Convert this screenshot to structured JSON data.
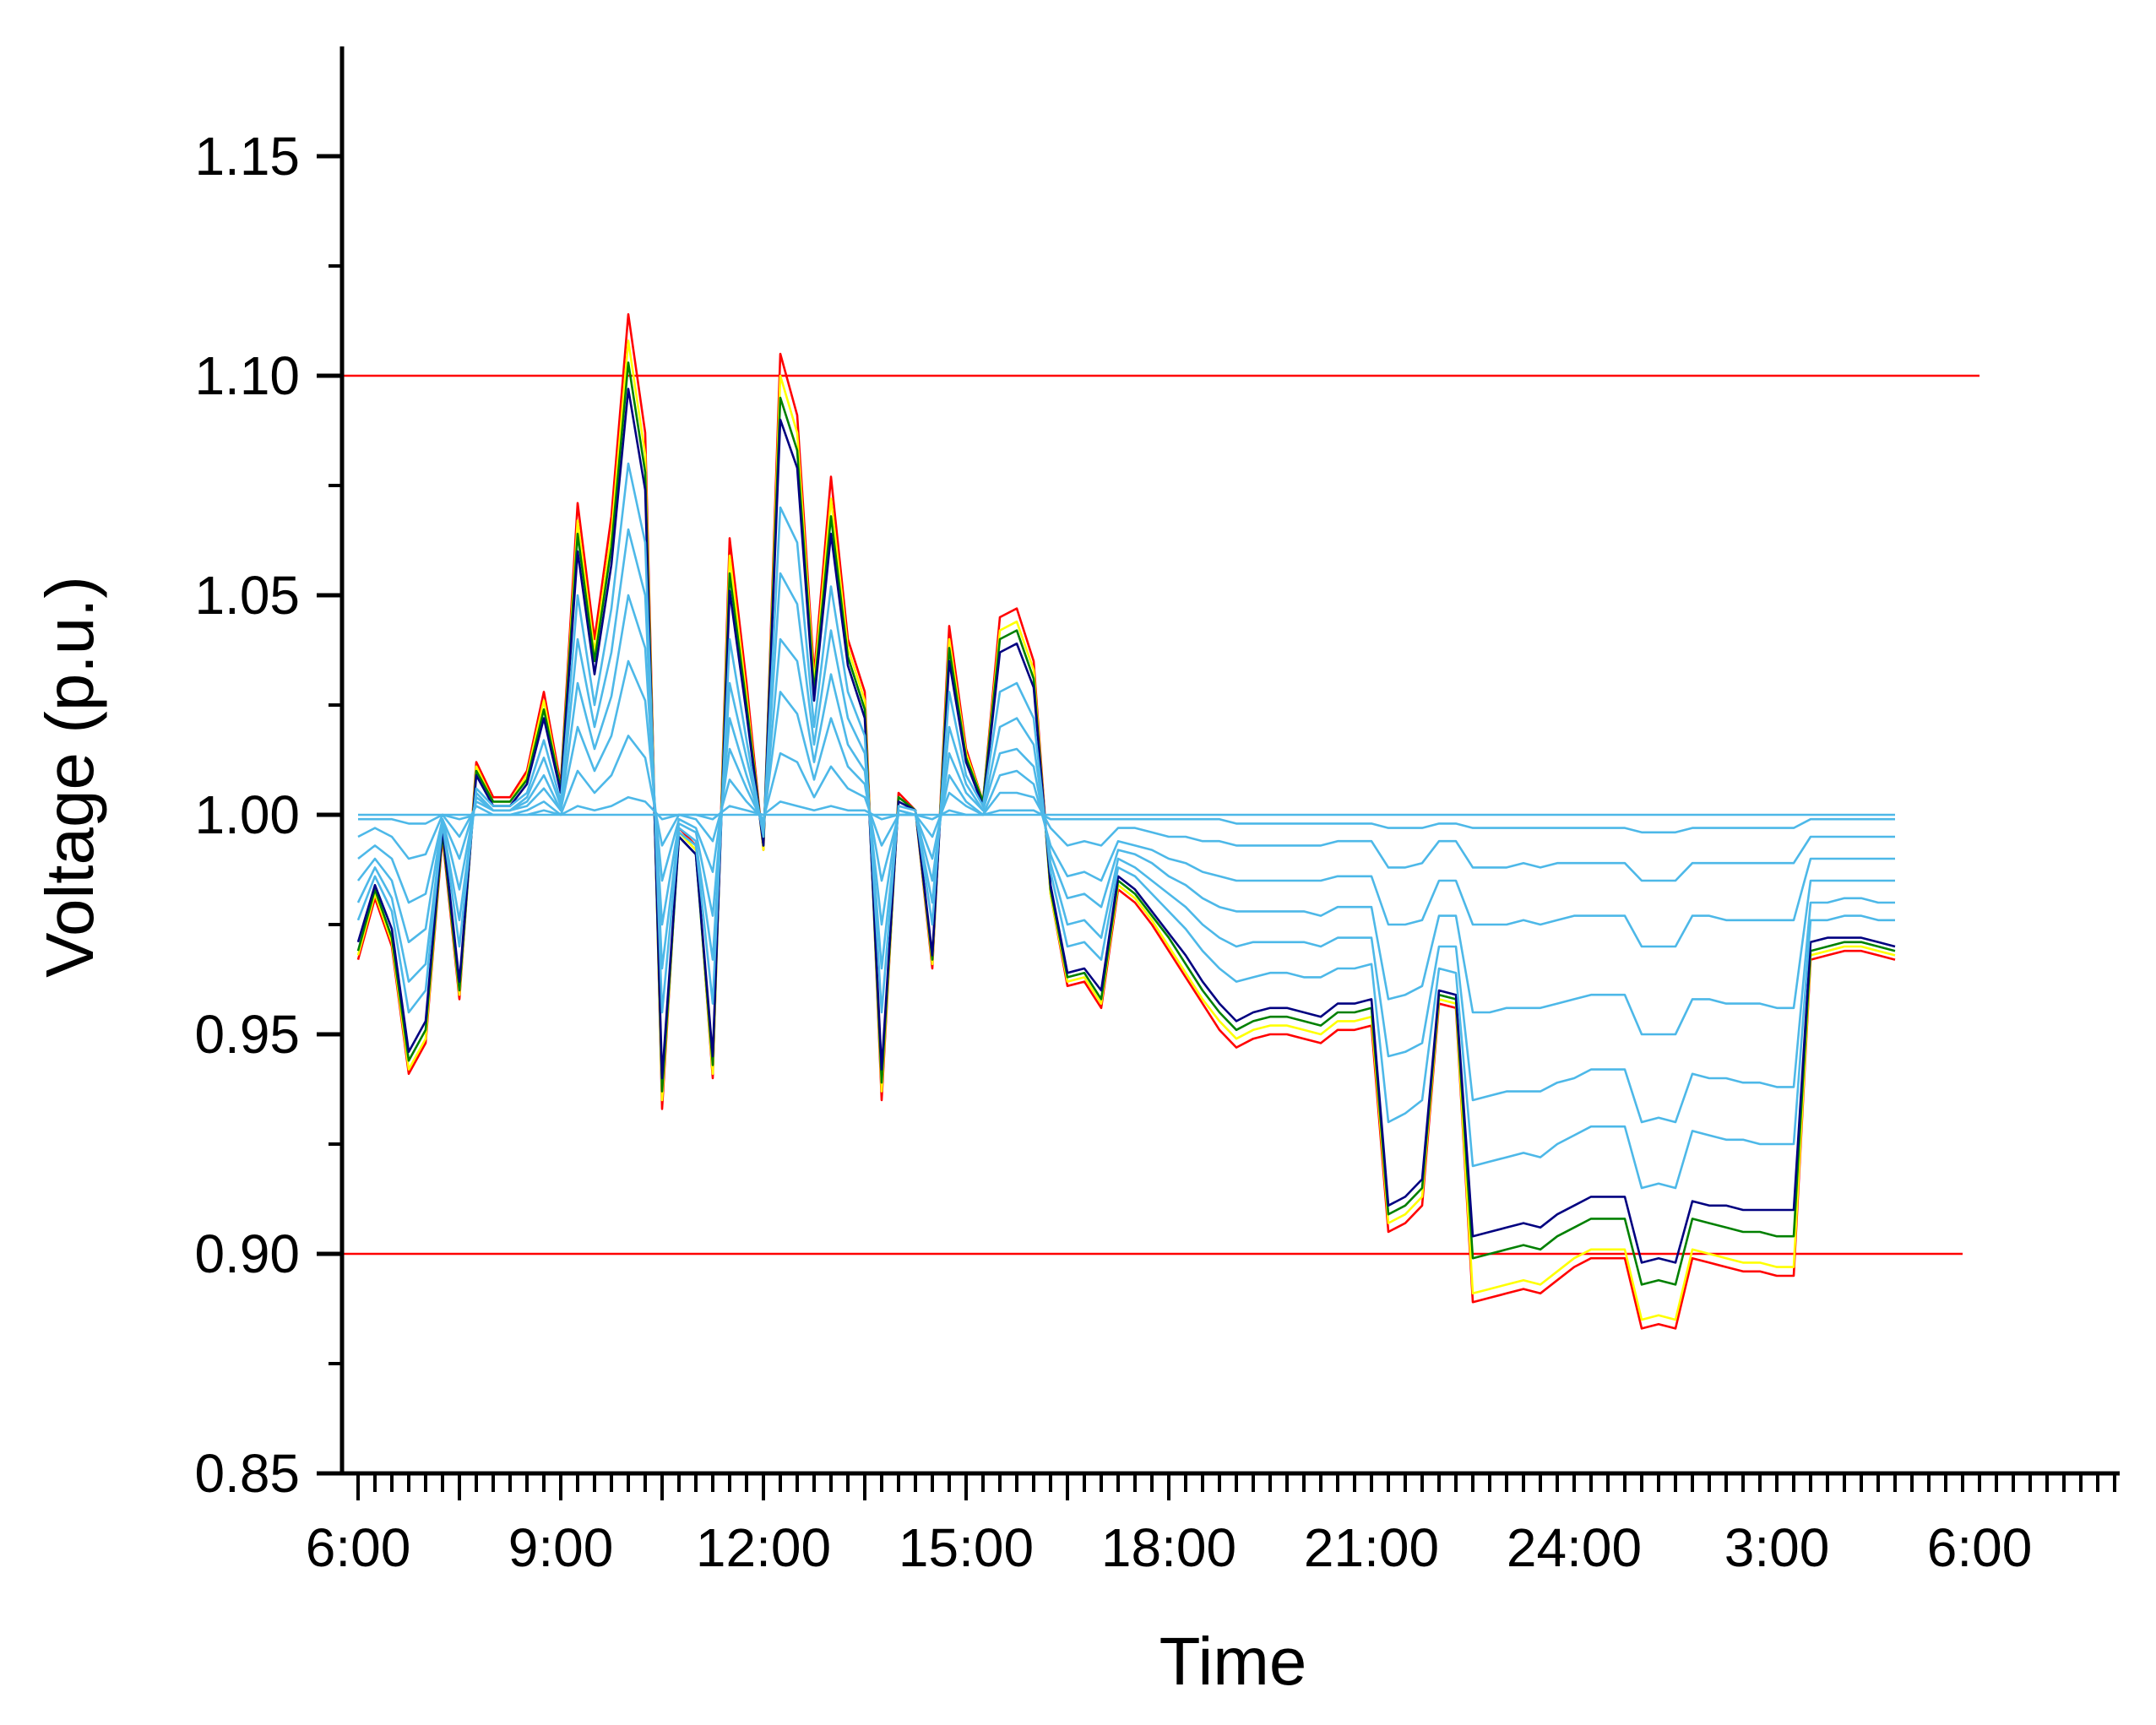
{
  "chart_data": {
    "type": "line",
    "title": "",
    "xlabel": "Time",
    "ylabel": "Voltage (p.u.)",
    "x_unit": "half-hour intervals starting 6:00",
    "xlim": [
      0,
      96
    ],
    "ylim": [
      0.85,
      1.175
    ],
    "x_tick_labels": [
      "6:00",
      "9:00",
      "12:00",
      "15:00",
      "18:00",
      "21:00",
      "24:00",
      "3:00",
      "6:00"
    ],
    "y_tick_labels": [
      "0.85",
      "0.90",
      "0.95",
      "1.00",
      "1.05",
      "1.10",
      "1.15"
    ],
    "y_ticks": [
      0.85,
      0.9,
      0.95,
      1.0,
      1.05,
      1.1,
      1.15
    ],
    "limits": [
      {
        "value": 1.1,
        "color": "#ff0000",
        "x_end": 96
      },
      {
        "value": 0.9,
        "color": "#ff0000",
        "x_end": 95
      }
    ],
    "colors": {
      "node": "#4db8e8",
      "highlight": [
        "#000080",
        "#008000",
        "#ffff00",
        "#ff0000"
      ]
    },
    "series": [
      {
        "color": "#ff0000",
        "values": [
          0.967,
          0.981,
          0.97,
          0.941,
          0.948,
          0.995,
          0.958,
          1.012,
          1.004,
          1.004,
          1.01,
          1.028,
          1.007,
          1.071,
          1.04,
          1.068,
          1.114,
          1.087,
          0.933,
          0.997,
          0.993,
          0.94,
          1.063,
          1.03,
          0.992,
          1.105,
          1.091,
          1.032,
          1.077,
          1.04,
          1.028,
          0.935,
          1.005,
          1.001,
          0.965,
          1.043,
          1.015,
          1.003,
          1.045,
          1.047,
          1.035,
          0.982,
          0.961,
          0.962,
          0.956,
          0.983,
          0.98,
          0.975,
          0.969,
          0.963,
          0.957,
          0.951,
          0.947,
          0.949,
          0.95,
          0.95,
          0.949,
          0.948,
          0.951,
          0.951,
          0.952,
          0.905,
          0.907,
          0.911,
          0.957,
          0.956,
          0.889,
          0.89,
          0.891,
          0.892,
          0.891,
          0.894,
          0.897,
          0.899,
          0.899,
          0.899,
          0.883,
          0.884,
          0.883,
          0.899,
          0.898,
          0.897,
          0.896,
          0.896,
          0.895,
          0.895,
          0.967,
          0.968,
          0.969,
          0.969,
          0.968,
          0.967
        ]
      },
      {
        "color": "#ffff00",
        "values": [
          0.968,
          0.982,
          0.971,
          0.942,
          0.949,
          0.996,
          0.959,
          1.011,
          1.003,
          1.003,
          1.009,
          1.026,
          1.006,
          1.067,
          1.037,
          1.064,
          1.108,
          1.082,
          0.935,
          0.996,
          0.992,
          0.941,
          1.059,
          1.027,
          0.992,
          1.1,
          1.087,
          1.03,
          1.072,
          1.038,
          1.026,
          0.937,
          1.004,
          1.001,
          0.966,
          1.04,
          1.014,
          1.003,
          1.042,
          1.044,
          1.033,
          0.982,
          0.962,
          0.963,
          0.957,
          0.984,
          0.981,
          0.976,
          0.97,
          0.964,
          0.958,
          0.953,
          0.949,
          0.951,
          0.952,
          0.952,
          0.951,
          0.95,
          0.953,
          0.953,
          0.954,
          0.907,
          0.909,
          0.913,
          0.958,
          0.957,
          0.891,
          0.892,
          0.893,
          0.894,
          0.893,
          0.896,
          0.899,
          0.901,
          0.901,
          0.901,
          0.885,
          0.886,
          0.885,
          0.901,
          0.9,
          0.899,
          0.898,
          0.898,
          0.897,
          0.897,
          0.968,
          0.969,
          0.97,
          0.97,
          0.969,
          0.968
        ]
      },
      {
        "color": "#008000",
        "values": [
          0.969,
          0.983,
          0.972,
          0.944,
          0.951,
          0.996,
          0.96,
          1.01,
          1.003,
          1.003,
          1.008,
          1.024,
          1.006,
          1.064,
          1.035,
          1.061,
          1.103,
          1.078,
          0.937,
          0.995,
          0.991,
          0.943,
          1.055,
          1.025,
          0.993,
          1.095,
          1.083,
          1.028,
          1.068,
          1.036,
          1.024,
          0.939,
          1.004,
          1.001,
          0.967,
          1.038,
          1.013,
          1.003,
          1.04,
          1.042,
          1.031,
          0.983,
          0.963,
          0.964,
          0.958,
          0.985,
          0.982,
          0.977,
          0.972,
          0.966,
          0.96,
          0.955,
          0.951,
          0.953,
          0.954,
          0.954,
          0.953,
          0.952,
          0.955,
          0.955,
          0.956,
          0.909,
          0.911,
          0.915,
          0.959,
          0.958,
          0.899,
          0.9,
          0.901,
          0.902,
          0.901,
          0.904,
          0.906,
          0.908,
          0.908,
          0.908,
          0.893,
          0.894,
          0.893,
          0.908,
          0.907,
          0.906,
          0.905,
          0.905,
          0.904,
          0.904,
          0.969,
          0.97,
          0.971,
          0.971,
          0.97,
          0.969
        ]
      },
      {
        "color": "#000080",
        "values": [
          0.971,
          0.984,
          0.974,
          0.946,
          0.953,
          0.997,
          0.962,
          1.009,
          1.002,
          1.002,
          1.007,
          1.022,
          1.005,
          1.06,
          1.032,
          1.057,
          1.097,
          1.074,
          0.94,
          0.995,
          0.991,
          0.945,
          1.051,
          1.023,
          0.993,
          1.09,
          1.079,
          1.026,
          1.064,
          1.034,
          1.022,
          0.942,
          1.003,
          1.001,
          0.968,
          1.035,
          1.012,
          1.002,
          1.037,
          1.039,
          1.029,
          0.984,
          0.964,
          0.965,
          0.96,
          0.986,
          0.983,
          0.978,
          0.973,
          0.968,
          0.962,
          0.957,
          0.953,
          0.955,
          0.956,
          0.956,
          0.955,
          0.954,
          0.957,
          0.957,
          0.958,
          0.911,
          0.913,
          0.917,
          0.96,
          0.959,
          0.904,
          0.905,
          0.906,
          0.907,
          0.906,
          0.909,
          0.911,
          0.913,
          0.913,
          0.913,
          0.898,
          0.899,
          0.898,
          0.912,
          0.911,
          0.911,
          0.91,
          0.91,
          0.91,
          0.91,
          0.971,
          0.972,
          0.972,
          0.972,
          0.971,
          0.97
        ]
      },
      {
        "color": "#4db8e8",
        "values": [
          0.976,
          0.986,
          0.978,
          0.955,
          0.96,
          0.998,
          0.97,
          1.006,
          1.002,
          1.002,
          1.005,
          1.017,
          1.003,
          1.05,
          1.025,
          1.047,
          1.08,
          1.062,
          0.955,
          0.996,
          0.993,
          0.957,
          1.04,
          1.017,
          0.995,
          1.07,
          1.062,
          1.02,
          1.052,
          1.028,
          1.018,
          0.955,
          1.002,
          1.001,
          0.975,
          1.028,
          1.009,
          1.002,
          1.028,
          1.03,
          1.022,
          0.987,
          0.97,
          0.971,
          0.967,
          0.988,
          0.986,
          0.982,
          0.978,
          0.974,
          0.969,
          0.965,
          0.962,
          0.963,
          0.964,
          0.964,
          0.963,
          0.963,
          0.965,
          0.965,
          0.966,
          0.93,
          0.932,
          0.935,
          0.965,
          0.964,
          0.92,
          0.921,
          0.922,
          0.923,
          0.922,
          0.925,
          0.927,
          0.929,
          0.929,
          0.929,
          0.915,
          0.916,
          0.915,
          0.928,
          0.927,
          0.926,
          0.926,
          0.925,
          0.925,
          0.925,
          0.976,
          0.976,
          0.977,
          0.977,
          0.976,
          0.976
        ]
      },
      {
        "color": "#4db8e8",
        "values": [
          0.98,
          0.988,
          0.981,
          0.962,
          0.966,
          0.998,
          0.976,
          1.005,
          1.001,
          1.001,
          1.004,
          1.013,
          1.002,
          1.04,
          1.02,
          1.037,
          1.065,
          1.05,
          0.965,
          0.997,
          0.994,
          0.967,
          1.03,
          1.013,
          0.996,
          1.055,
          1.048,
          1.016,
          1.042,
          1.022,
          1.014,
          0.965,
          1.001,
          1.0,
          0.98,
          1.02,
          1.007,
          1.001,
          1.02,
          1.022,
          1.016,
          0.989,
          0.975,
          0.976,
          0.972,
          0.99,
          0.988,
          0.985,
          0.982,
          0.979,
          0.975,
          0.972,
          0.97,
          0.971,
          0.971,
          0.971,
          0.971,
          0.97,
          0.972,
          0.972,
          0.972,
          0.945,
          0.946,
          0.948,
          0.97,
          0.97,
          0.935,
          0.936,
          0.937,
          0.937,
          0.937,
          0.939,
          0.94,
          0.942,
          0.942,
          0.942,
          0.93,
          0.931,
          0.93,
          0.941,
          0.94,
          0.94,
          0.939,
          0.939,
          0.938,
          0.938,
          0.98,
          0.98,
          0.981,
          0.981,
          0.98,
          0.98
        ]
      },
      {
        "color": "#4db8e8",
        "values": [
          0.985,
          0.99,
          0.985,
          0.971,
          0.974,
          0.999,
          0.983,
          1.004,
          1.001,
          1.001,
          1.003,
          1.009,
          1.001,
          1.03,
          1.015,
          1.027,
          1.05,
          1.038,
          0.975,
          0.998,
          0.996,
          0.977,
          1.022,
          1.009,
          0.997,
          1.04,
          1.035,
          1.012,
          1.032,
          1.016,
          1.01,
          0.975,
          1.001,
          1.0,
          0.985,
          1.014,
          1.005,
          1.001,
          1.014,
          1.015,
          1.011,
          0.991,
          0.981,
          0.982,
          0.979,
          0.992,
          0.991,
          0.989,
          0.986,
          0.984,
          0.981,
          0.979,
          0.978,
          0.978,
          0.978,
          0.978,
          0.978,
          0.977,
          0.979,
          0.979,
          0.979,
          0.958,
          0.959,
          0.961,
          0.977,
          0.977,
          0.955,
          0.955,
          0.956,
          0.956,
          0.956,
          0.957,
          0.958,
          0.959,
          0.959,
          0.959,
          0.95,
          0.95,
          0.95,
          0.958,
          0.958,
          0.957,
          0.957,
          0.957,
          0.956,
          0.956,
          0.985,
          0.985,
          0.985,
          0.985,
          0.985,
          0.985
        ]
      },
      {
        "color": "#4db8e8",
        "values": [
          0.99,
          0.993,
          0.99,
          0.98,
          0.982,
          0.999,
          0.99,
          1.003,
          1.001,
          1.001,
          1.002,
          1.006,
          1.001,
          1.02,
          1.01,
          1.018,
          1.035,
          1.026,
          0.985,
          0.999,
          0.997,
          0.987,
          1.015,
          1.006,
          0.998,
          1.028,
          1.023,
          1.008,
          1.022,
          1.011,
          1.007,
          0.985,
          1.0,
          1.0,
          0.99,
          1.009,
          1.003,
          1.0,
          1.009,
          1.01,
          1.007,
          0.993,
          0.986,
          0.987,
          0.985,
          0.994,
          0.993,
          0.992,
          0.99,
          0.989,
          0.987,
          0.986,
          0.985,
          0.985,
          0.985,
          0.985,
          0.985,
          0.985,
          0.986,
          0.986,
          0.986,
          0.975,
          0.975,
          0.976,
          0.985,
          0.985,
          0.975,
          0.975,
          0.975,
          0.976,
          0.975,
          0.976,
          0.977,
          0.977,
          0.977,
          0.977,
          0.97,
          0.97,
          0.97,
          0.977,
          0.977,
          0.976,
          0.976,
          0.976,
          0.976,
          0.976,
          0.99,
          0.99,
          0.99,
          0.99,
          0.99,
          0.99
        ]
      },
      {
        "color": "#4db8e8",
        "values": [
          0.995,
          0.997,
          0.995,
          0.99,
          0.991,
          1.0,
          0.995,
          1.002,
          1.0,
          1.0,
          1.001,
          1.003,
          1.0,
          1.01,
          1.005,
          1.009,
          1.018,
          1.013,
          0.993,
          1.0,
          0.999,
          0.994,
          1.008,
          1.003,
          0.999,
          1.014,
          1.012,
          1.004,
          1.011,
          1.006,
          1.004,
          0.993,
          1.0,
          1.0,
          0.995,
          1.005,
          1.002,
          1.0,
          1.005,
          1.005,
          1.004,
          0.997,
          0.993,
          0.994,
          0.993,
          0.997,
          0.997,
          0.996,
          0.995,
          0.995,
          0.994,
          0.994,
          0.993,
          0.993,
          0.993,
          0.993,
          0.993,
          0.993,
          0.994,
          0.994,
          0.994,
          0.988,
          0.988,
          0.989,
          0.994,
          0.994,
          0.988,
          0.988,
          0.988,
          0.989,
          0.988,
          0.989,
          0.989,
          0.989,
          0.989,
          0.989,
          0.985,
          0.985,
          0.985,
          0.989,
          0.989,
          0.989,
          0.989,
          0.989,
          0.989,
          0.989,
          0.995,
          0.995,
          0.995,
          0.995,
          0.995,
          0.995
        ]
      },
      {
        "color": "#4db8e8",
        "values": [
          0.999,
          0.999,
          0.999,
          0.998,
          0.998,
          1.0,
          0.999,
          1.0,
          1.0,
          1.0,
          1.0,
          1.001,
          1.0,
          1.002,
          1.001,
          1.002,
          1.004,
          1.003,
          0.999,
          1.0,
          1.0,
          0.999,
          1.002,
          1.001,
          1.0,
          1.003,
          1.002,
          1.001,
          1.002,
          1.001,
          1.001,
          0.999,
          1.0,
          1.0,
          0.999,
          1.001,
          1.0,
          1.0,
          1.001,
          1.001,
          1.001,
          0.999,
          0.999,
          0.999,
          0.999,
          0.999,
          0.999,
          0.999,
          0.999,
          0.999,
          0.999,
          0.999,
          0.998,
          0.998,
          0.998,
          0.998,
          0.998,
          0.998,
          0.998,
          0.998,
          0.998,
          0.997,
          0.997,
          0.997,
          0.998,
          0.998,
          0.997,
          0.997,
          0.997,
          0.997,
          0.997,
          0.997,
          0.997,
          0.997,
          0.997,
          0.997,
          0.996,
          0.996,
          0.996,
          0.997,
          0.997,
          0.997,
          0.997,
          0.997,
          0.997,
          0.997,
          0.999,
          0.999,
          0.999,
          0.999,
          0.999,
          0.999
        ]
      },
      {
        "color": "#4db8e8",
        "values": [
          1.0,
          1.0,
          1.0,
          1.0,
          1.0,
          1.0,
          1.0,
          1.0,
          1.0,
          1.0,
          1.0,
          1.0,
          1.0,
          1.0,
          1.0,
          1.0,
          1.0,
          1.0,
          1.0,
          1.0,
          1.0,
          1.0,
          1.0,
          1.0,
          1.0,
          1.0,
          1.0,
          1.0,
          1.0,
          1.0,
          1.0,
          1.0,
          1.0,
          1.0,
          1.0,
          1.0,
          1.0,
          1.0,
          1.0,
          1.0,
          1.0,
          1.0,
          1.0,
          1.0,
          1.0,
          1.0,
          1.0,
          1.0,
          1.0,
          1.0,
          1.0,
          1.0,
          1.0,
          1.0,
          1.0,
          1.0,
          1.0,
          1.0,
          1.0,
          1.0,
          1.0,
          1.0,
          1.0,
          1.0,
          1.0,
          1.0,
          1.0,
          1.0,
          1.0,
          1.0,
          1.0,
          1.0,
          1.0,
          1.0,
          1.0,
          1.0,
          1.0,
          1.0,
          1.0,
          1.0,
          1.0,
          1.0,
          1.0,
          1.0,
          1.0,
          1.0,
          1.0,
          1.0,
          1.0,
          1.0,
          1.0,
          1.0
        ]
      }
    ]
  }
}
